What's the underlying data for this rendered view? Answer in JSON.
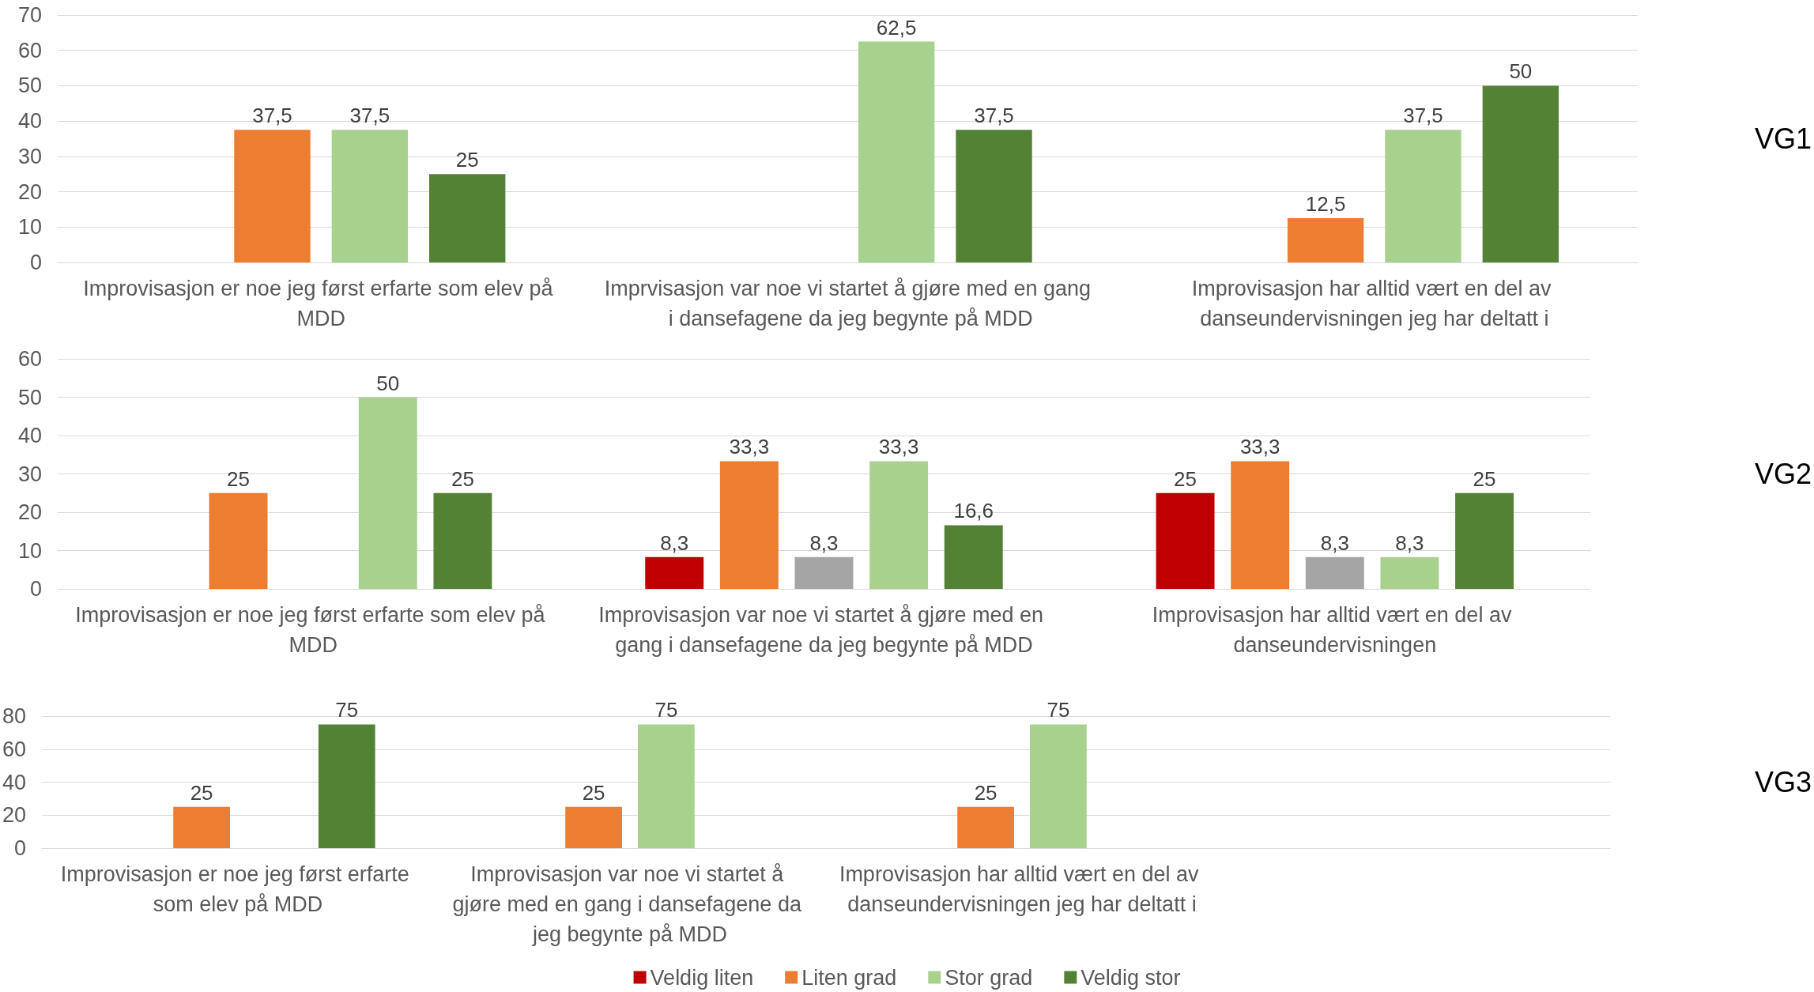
{
  "chart_data": [
    {
      "type": "bar",
      "ylabel": "VG1",
      "categories": [
        "Improvisasjon er noe jeg først erfarte som elev på MDD",
        "Imprvisasjon var noe vi startet å gjøre med en gang i dansefagene da jeg begynte på MDD",
        "Improvisasjon har alltid vært en del av danseundervisningen jeg har deltatt i"
      ],
      "series": [
        {
          "color": "#c00000",
          "values": [
            null,
            null,
            null
          ],
          "value_labels": [
            null,
            null,
            null
          ]
        },
        {
          "color": "#ed7d31",
          "values": [
            37.5,
            null,
            12.5
          ],
          "value_labels": [
            "37,5",
            null,
            "12,5"
          ]
        },
        {
          "color": "#a9d18e",
          "values": [
            37.5,
            62.5,
            37.5
          ],
          "value_labels": [
            "37,5",
            "62,5",
            "37,5"
          ]
        },
        {
          "color": "#548235",
          "values": [
            25,
            37.5,
            50
          ],
          "value_labels": [
            "25",
            "37,5",
            "50"
          ]
        }
      ],
      "ylim": [
        0,
        70
      ],
      "yticks": [
        0,
        10,
        20,
        30,
        40,
        50,
        60,
        70
      ],
      "grid": "y",
      "legend": false
    },
    {
      "type": "bar",
      "ylabel": "VG2",
      "categories": [
        "Improvisasjon er noe jeg først erfarte som elev på MDD",
        "Improvisasjon var noe vi startet å gjøre med en gang i dansefagene da jeg begynte på MDD",
        "Improvisasjon har alltid vært en del av danseundervisningen"
      ],
      "series": [
        {
          "color": "#c00000",
          "values": [
            null,
            8.3,
            25
          ],
          "value_labels": [
            null,
            "8,3",
            "25"
          ]
        },
        {
          "color": "#ed7d31",
          "values": [
            25,
            33.3,
            33.3
          ],
          "value_labels": [
            "25",
            "33,3",
            "33,3"
          ]
        },
        {
          "color": "#a5a5a5",
          "values": [
            null,
            8.3,
            8.3
          ],
          "value_labels": [
            null,
            "8,3",
            "8,3"
          ]
        },
        {
          "color": "#a9d18e",
          "values": [
            50,
            33.3,
            8.3
          ],
          "value_labels": [
            "50",
            "33,3",
            "8,3"
          ]
        },
        {
          "color": "#548235",
          "values": [
            25,
            16.6,
            25
          ],
          "value_labels": [
            "25",
            "16,6",
            "25"
          ]
        }
      ],
      "ylim": [
        0,
        60
      ],
      "yticks": [
        0,
        10,
        20,
        30,
        40,
        50,
        60
      ],
      "grid": "y",
      "legend": false
    },
    {
      "type": "bar",
      "ylabel": "VG3",
      "categories": [
        "Improvisasjon er noe jeg først erfarte som elev på MDD",
        "Improvisasjon var noe vi startet å gjøre med en gang i dansefagene da jeg begynte på MDD",
        "Improvisasjon har alltid vært en del av danseundervisningen jeg har deltatt i",
        null
      ],
      "series": [
        {
          "name": "Veldig liten",
          "color": "#c00000",
          "values": [
            null,
            null,
            null,
            null
          ],
          "value_labels": [
            null,
            null,
            null,
            null
          ]
        },
        {
          "name": "Liten grad",
          "color": "#ed7d31",
          "values": [
            25,
            25,
            25,
            null
          ],
          "value_labels": [
            "25",
            "25",
            "25",
            null
          ]
        },
        {
          "name": "Stor grad",
          "color": "#a9d18e",
          "values": [
            null,
            75,
            75,
            null
          ],
          "value_labels": [
            null,
            "75",
            "75",
            null
          ]
        },
        {
          "name": "Veldig stor",
          "color": "#548235",
          "values": [
            75,
            null,
            null,
            null
          ],
          "value_labels": [
            "75",
            null,
            null,
            null
          ]
        }
      ],
      "ylim": [
        0,
        80
      ],
      "yticks": [
        0,
        20,
        40,
        60,
        80
      ],
      "grid": "y",
      "legend": "bottom"
    }
  ]
}
